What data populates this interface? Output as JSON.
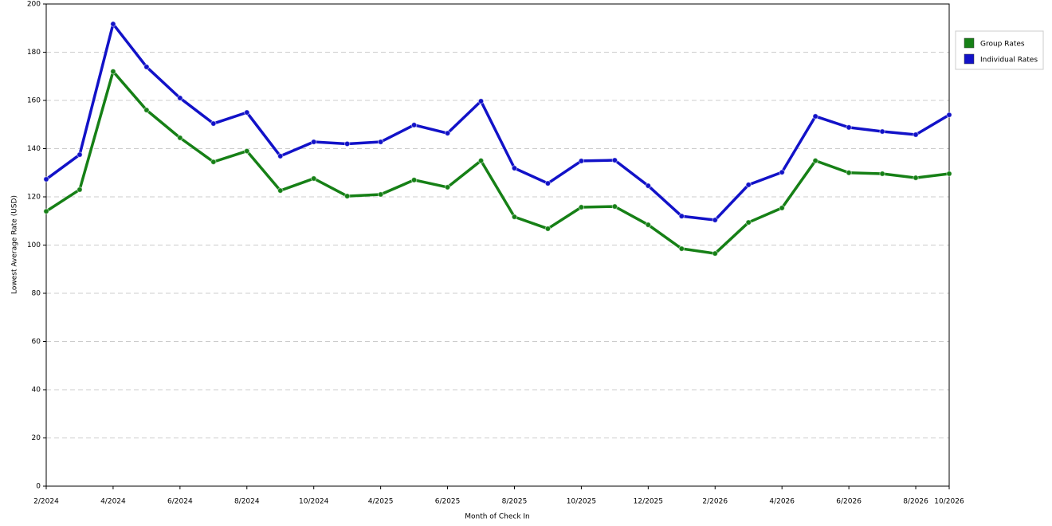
{
  "chart_data": {
    "type": "line",
    "x_label": "Month of Check In",
    "y_label": "Lowest Average Rate (USD)",
    "categories": [
      "2/2024",
      null,
      "4/2024",
      null,
      "6/2024",
      null,
      "8/2024",
      null,
      "10/2024",
      null,
      "4/2025",
      null,
      "6/2025",
      null,
      "8/2025",
      null,
      "10/2025",
      null,
      "12/2025",
      null,
      "2/2026",
      null,
      "4/2026",
      null,
      "6/2026",
      null,
      "8/2026",
      "10/2026"
    ],
    "series": [
      {
        "name": "Group Rates",
        "color": "#168016",
        "values": [
          114,
          123,
          172,
          156,
          144.5,
          134.5,
          139,
          122.6,
          127.6,
          120.3,
          121,
          127,
          124,
          135,
          111.7,
          106.8,
          115.7,
          116,
          108.4,
          98.5,
          96.5,
          109.4,
          115.4,
          135,
          130,
          129.6,
          127.9,
          129.6
        ]
      },
      {
        "name": "Individual Rates",
        "color": "#1212c8",
        "values": [
          127.3,
          137.5,
          191.7,
          173.9,
          161,
          150.4,
          155,
          136.9,
          142.8,
          142,
          142.8,
          149.8,
          146.4,
          159.7,
          131.9,
          125.6,
          134.9,
          135.2,
          124.6,
          112,
          110.4,
          125,
          130.2,
          153.4,
          148.8,
          147.1,
          145.8,
          154
        ]
      }
    ],
    "ylim": [
      0,
      200
    ],
    "yticks": [
      0,
      20,
      40,
      60,
      80,
      100,
      120,
      140,
      160,
      180,
      200
    ],
    "grid": true
  }
}
